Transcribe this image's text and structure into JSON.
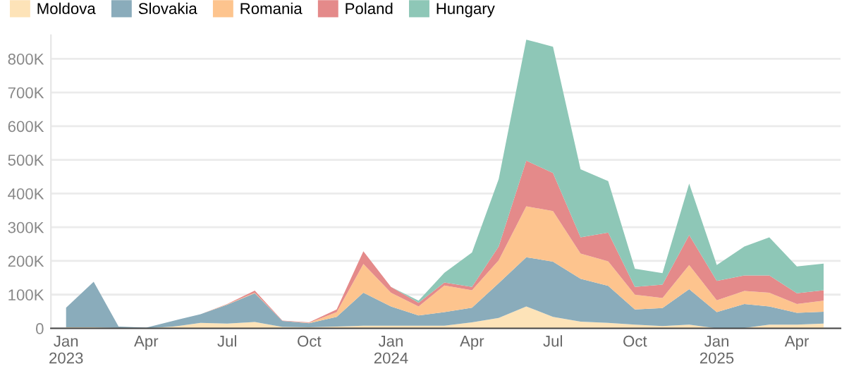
{
  "chart_data": {
    "type": "area",
    "stacked": true,
    "legend": "top left",
    "grid": "y",
    "x": [
      "2023-01",
      "2023-02",
      "2023-03",
      "2023-04",
      "2023-05",
      "2023-06",
      "2023-07",
      "2023-08",
      "2023-09",
      "2023-10",
      "2023-11",
      "2023-12",
      "2024-01",
      "2024-02",
      "2024-03",
      "2024-04",
      "2024-05",
      "2024-06",
      "2024-07",
      "2024-08",
      "2024-09",
      "2024-10",
      "2024-11",
      "2024-12",
      "2025-01",
      "2025-02",
      "2025-03",
      "2025-04",
      "2025-05"
    ],
    "series": [
      {
        "name": "Moldova",
        "color": "#fde3b8",
        "values": [
          3000,
          3000,
          1000,
          0,
          5000,
          16000,
          14000,
          19000,
          4000,
          3000,
          5000,
          8000,
          8000,
          8000,
          8000,
          18000,
          31000,
          65000,
          34000,
          20000,
          16000,
          11000,
          7000,
          11000,
          0,
          1000,
          11000,
          11000,
          14000
        ]
      },
      {
        "name": "Slovakia",
        "color": "#8aacbb",
        "values": [
          58000,
          135000,
          4000,
          2000,
          17000,
          26000,
          56000,
          85000,
          18000,
          12000,
          29000,
          98000,
          57000,
          30000,
          40000,
          43000,
          103000,
          146000,
          164000,
          127000,
          110000,
          45000,
          53000,
          105000,
          48000,
          71000,
          54000,
          35000,
          35000
        ]
      },
      {
        "name": "Romania",
        "color": "#fdc48e",
        "values": [
          0,
          0,
          0,
          0,
          0,
          0,
          1000,
          2000,
          0,
          1000,
          14000,
          85000,
          41000,
          27000,
          79000,
          52000,
          68000,
          151000,
          150000,
          75000,
          73000,
          44000,
          30000,
          72000,
          35000,
          39000,
          41000,
          26000,
          33000
        ]
      },
      {
        "name": "Poland",
        "color": "#e48a8a",
        "values": [
          0,
          0,
          0,
          0,
          0,
          0,
          1000,
          6000,
          1000,
          2000,
          8000,
          38000,
          17000,
          11000,
          9000,
          10000,
          41000,
          136000,
          113000,
          48000,
          85000,
          23000,
          40000,
          89000,
          58000,
          46000,
          51000,
          32000,
          31000
        ]
      },
      {
        "name": "Hungary",
        "color": "#8ec7b7",
        "values": [
          0,
          0,
          0,
          0,
          0,
          0,
          0,
          0,
          0,
          0,
          0,
          0,
          0,
          6000,
          29000,
          102000,
          200000,
          359000,
          375000,
          202000,
          153000,
          54000,
          34000,
          153000,
          47000,
          86000,
          113000,
          80000,
          79000
        ]
      }
    ],
    "xlim": [
      "2022-12-15",
      "2025-05-20"
    ],
    "xticks": [
      {
        "value": "2023-01",
        "label": "Jan\n2023"
      },
      {
        "value": "2023-04",
        "label": "Apr"
      },
      {
        "value": "2023-07",
        "label": "Jul"
      },
      {
        "value": "2023-10",
        "label": "Oct"
      },
      {
        "value": "2024-01",
        "label": "Jan\n2024"
      },
      {
        "value": "2024-04",
        "label": "Apr"
      },
      {
        "value": "2024-07",
        "label": "Jul"
      },
      {
        "value": "2024-10",
        "label": "Oct"
      },
      {
        "value": "2025-01",
        "label": "Jan\n2025"
      },
      {
        "value": "2025-04",
        "label": "Apr"
      }
    ],
    "ylim": [
      0,
      870000
    ],
    "yticks": [
      0,
      {
        "value": 100000,
        "label": "100K"
      },
      {
        "value": 200000,
        "label": "200K"
      },
      {
        "value": 300000,
        "label": "300K"
      },
      {
        "value": 400000,
        "label": "400K"
      },
      {
        "value": 500000,
        "label": "500K"
      },
      {
        "value": 600000,
        "label": "600K"
      },
      {
        "value": 700000,
        "label": "700K"
      },
      {
        "value": 800000,
        "label": "800K"
      }
    ]
  }
}
